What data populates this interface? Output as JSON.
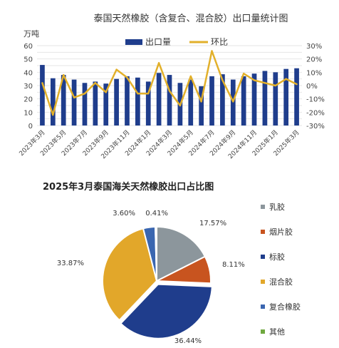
{
  "chart_data": [
    {
      "type": "bar+line",
      "title": "泰国天然橡胶（含复合、混合胶）出口量统计图",
      "left_axis_unit": "万吨",
      "legend": [
        {
          "name": "出口量",
          "color": "#1f3d8c"
        },
        {
          "name": "环比",
          "color": "#e2b02a"
        }
      ],
      "x_tick_labels": [
        "2023年3月",
        "2023年5月",
        "2023年7月",
        "2023年9月",
        "2023年11月",
        "2024年1月",
        "2024年3月",
        "2024年5月",
        "2024年7月",
        "2024年9月",
        "2024年11月",
        "2025年1月",
        "2025年3月"
      ],
      "months": [
        "2023-03",
        "2023-04",
        "2023-05",
        "2023-06",
        "2023-07",
        "2023-08",
        "2023-09",
        "2023-10",
        "2023-11",
        "2023-12",
        "2024-01",
        "2024-02",
        "2024-03",
        "2024-04",
        "2024-05",
        "2024-06",
        "2024-07",
        "2024-08",
        "2024-09",
        "2024-10",
        "2024-11",
        "2024-12",
        "2025-01",
        "2025-02",
        "2025-03"
      ],
      "ylim_left": [
        0,
        60
      ],
      "yticks_left": [
        "0",
        "5",
        "10",
        "15",
        "20",
        "25",
        "30",
        "35",
        "40",
        "45",
        "50",
        "55",
        "60"
      ],
      "ylim_right": [
        -30,
        30
      ],
      "yticks_right": [
        "-30%",
        "-20%",
        "-10%",
        "0%",
        "10%",
        "20%",
        "30%"
      ],
      "series": [
        {
          "name": "出口量",
          "type": "bar",
          "color": "#1f3d8c",
          "values": [
            45.5,
            35.5,
            38.0,
            34.5,
            32.0,
            33.0,
            31.5,
            35.0,
            37.0,
            36.0,
            33.0,
            39.5,
            38.0,
            32.0,
            34.5,
            29.5,
            37.0,
            38.5,
            34.5,
            37.0,
            39.0,
            41.0,
            40.0,
            42.5,
            43.0
          ]
        },
        {
          "name": "环比",
          "type": "line",
          "color": "#e2b02a",
          "unit": "%",
          "values": [
            2,
            -22,
            8,
            -9,
            -6,
            2,
            -5,
            12,
            6,
            -6,
            -6,
            17,
            -4,
            -15,
            7,
            -12,
            26,
            4,
            -12,
            9,
            4,
            2,
            0,
            5,
            1
          ]
        }
      ]
    },
    {
      "type": "pie",
      "title": "2025年3月泰国海关天然橡胶出口占比图",
      "categories": [
        "乳胶",
        "烟片胶",
        "标胶",
        "混合胶",
        "复合橡胶",
        "其他"
      ],
      "values": [
        17.57,
        8.11,
        36.44,
        33.87,
        3.6,
        0.41
      ],
      "labels": [
        "17.57%",
        "8.11%",
        "36.44%",
        "33.87%",
        "3.60%",
        "0.41%"
      ],
      "colors": [
        "#8c969c",
        "#c8541f",
        "#1f3d8c",
        "#e2a72a",
        "#3a66b0",
        "#6fa83f"
      ],
      "legend_position": "right"
    }
  ]
}
